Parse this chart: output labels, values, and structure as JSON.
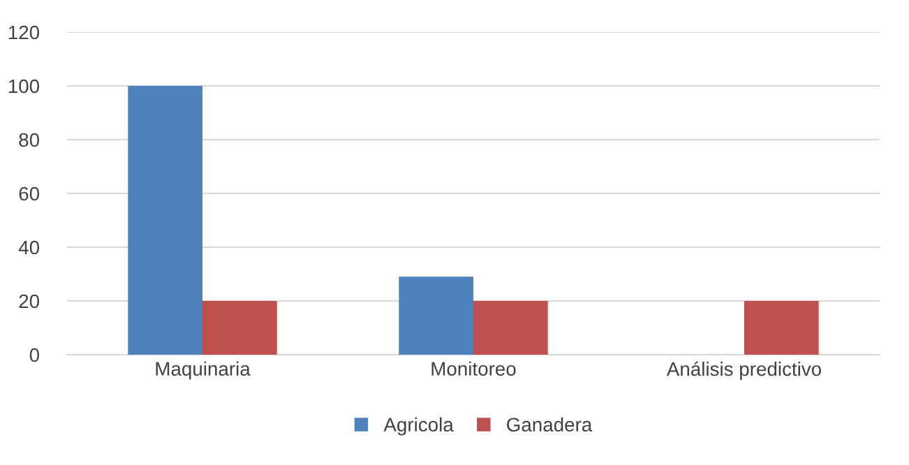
{
  "chart_data": {
    "type": "bar",
    "categories": [
      "Maquinaria",
      "Monitoreo",
      "Análisis predictivo"
    ],
    "series": [
      {
        "name": "Agricola",
        "color": "#4f81bd",
        "values": [
          100,
          29,
          0
        ]
      },
      {
        "name": "Ganadera",
        "color": "#c0504d",
        "values": [
          20,
          20,
          20
        ]
      }
    ],
    "ylim": [
      0,
      120
    ],
    "yticks": [
      0,
      20,
      40,
      60,
      80,
      100,
      120
    ],
    "grid": "y",
    "legend": "bottom"
  }
}
